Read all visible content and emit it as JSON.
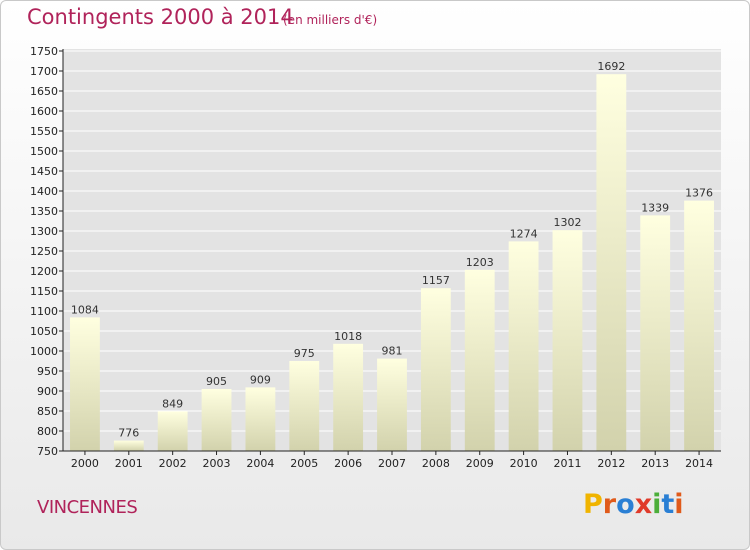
{
  "header": {
    "title": "Contingents 2000 à 2014",
    "subtitle": "(en milliers d'€)"
  },
  "footer": {
    "city": "VINCENNES",
    "logo_text": "Proxiti"
  },
  "colors": {
    "title": "#b0235a",
    "bar_top": "#ffffe0",
    "bar_bottom": "#d2d2ac",
    "grid": "#ffffff",
    "axis": "#222222",
    "logo_letters": [
      "#f0b400",
      "#e05a1a",
      "#2a7fd4",
      "#e03a2a",
      "#4cae3a",
      "#2a7fd4",
      "#e05a1a"
    ]
  },
  "chart_data": {
    "type": "bar",
    "title": "Contingents 2000 à 2014",
    "subtitle": "(en milliers d'€)",
    "categories": [
      "2000",
      "2001",
      "2002",
      "2003",
      "2004",
      "2005",
      "2006",
      "2007",
      "2008",
      "2009",
      "2010",
      "2011",
      "2012",
      "2013",
      "2014"
    ],
    "values": [
      1084,
      776,
      849,
      905,
      909,
      975,
      1018,
      981,
      1157,
      1203,
      1274,
      1302,
      1692,
      1339,
      1376
    ],
    "ylim": [
      750,
      1750
    ],
    "yticks": [
      750,
      800,
      850,
      900,
      950,
      1000,
      1050,
      1100,
      1150,
      1200,
      1250,
      1300,
      1350,
      1400,
      1450,
      1500,
      1550,
      1600,
      1650,
      1700,
      1750
    ],
    "grid": true,
    "legend": "none"
  }
}
